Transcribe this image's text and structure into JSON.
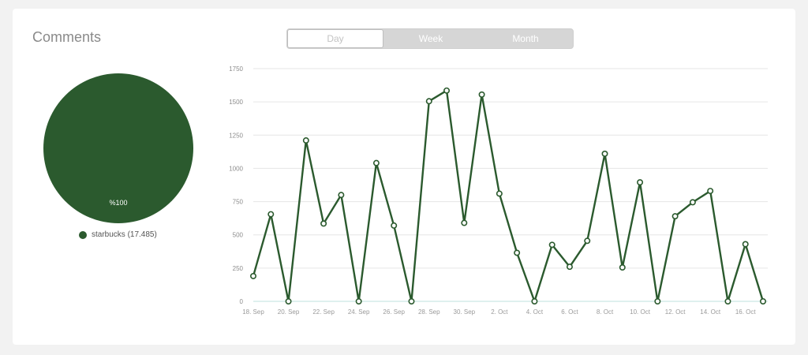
{
  "card": {
    "title": "Comments"
  },
  "tabs": [
    {
      "label": "Day",
      "active": true
    },
    {
      "label": "Week",
      "active": false
    },
    {
      "label": "Month",
      "active": false
    }
  ],
  "pie": {
    "slices": [
      {
        "name": "starbucks",
        "value": 17485,
        "label": "%100",
        "color": "#2b5a2e"
      }
    ],
    "legend_text": "starbucks (17.485)"
  },
  "chart_data": {
    "type": "line",
    "title": "",
    "xlabel": "",
    "ylabel": "",
    "ylim": [
      0,
      1750
    ],
    "yticks": [
      0,
      250,
      500,
      750,
      1000,
      1250,
      1500,
      1750
    ],
    "x": [
      "18. Sep",
      "19. Sep",
      "20. Sep",
      "21. Sep",
      "22. Sep",
      "23. Sep",
      "24. Sep",
      "25. Sep",
      "26. Sep",
      "27. Sep",
      "28. Sep",
      "29. Sep",
      "30. Sep",
      "1. Oct",
      "2. Oct",
      "3. Oct",
      "4. Oct",
      "5. Oct",
      "6. Oct",
      "7. Oct",
      "8. Oct",
      "9. Oct",
      "10. Oct",
      "11. Oct",
      "12. Oct",
      "13. Oct",
      "14. Oct",
      "15. Oct",
      "16. Oct",
      "17. Oct"
    ],
    "xtick_labels": [
      "18. Sep",
      "20. Sep",
      "22. Sep",
      "24. Sep",
      "26. Sep",
      "28. Sep",
      "30. Sep",
      "2. Oct",
      "4. Oct",
      "6. Oct",
      "8. Oct",
      "10. Oct",
      "12. Oct",
      "14. Oct",
      "16. Oct"
    ],
    "series": [
      {
        "color": "#2b5a2e",
        "values": [
          190,
          655,
          0,
          1210,
          585,
          800,
          0,
          1040,
          570,
          0,
          1505,
          1585,
          590,
          1555,
          810,
          365,
          0,
          425,
          260,
          455,
          1110,
          255,
          895,
          0,
          640,
          745,
          830,
          0,
          430,
          0
        ]
      }
    ],
    "grid": true,
    "legend": "none"
  }
}
